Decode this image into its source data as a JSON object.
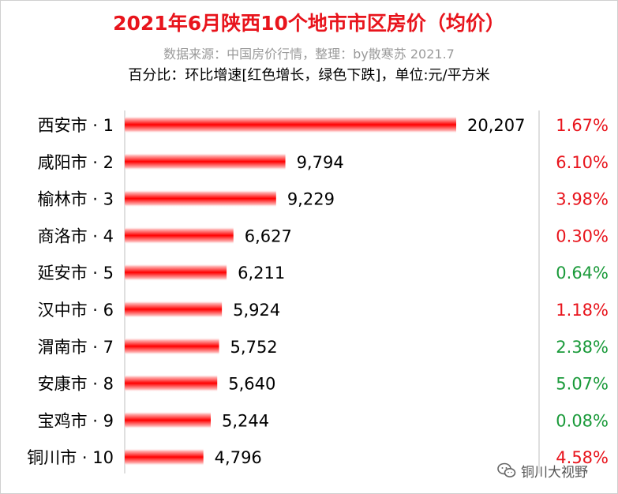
{
  "chart_data": {
    "type": "bar",
    "orientation": "horizontal",
    "title": "2021年6月陕西10个地市市区房价（均价）",
    "subtitle": "数据来源：中国房价行情，整理：by散寒苏  2021.7",
    "note": "百分比：环比增速[红色增长，绿色下跌]，单位:元/平方米",
    "categories": [
      "西安市 · 1",
      "咸阳市 · 2",
      "榆林市 · 3",
      "商洛市 · 4",
      "延安市 · 5",
      "汉中市 · 6",
      "渭南市 · 7",
      "安康市 · 8",
      "宝鸡市 · 9",
      "铜川市 · 10"
    ],
    "value_labels": [
      "20,207",
      "9,794",
      "9,229",
      "6,627",
      "6,211",
      "5,924",
      "5,752",
      "5,640",
      "5,244",
      "4,796"
    ],
    "values": [
      20207,
      9794,
      9229,
      6627,
      6211,
      5924,
      5752,
      5640,
      5244,
      4796
    ],
    "pct_labels": [
      "1.67%",
      "6.10%",
      "3.98%",
      "0.30%",
      "0.64%",
      "1.18%",
      "2.38%",
      "5.07%",
      "0.08%",
      "4.58%"
    ],
    "pct_direction": [
      "up",
      "up",
      "up",
      "up",
      "down",
      "up",
      "down",
      "down",
      "down",
      "up"
    ],
    "xlim": [
      0,
      20207
    ],
    "colors": {
      "bar": "#ff0000",
      "up": "#e8141c",
      "down": "#1a9a3a",
      "title": "#e8141c"
    }
  },
  "watermark": {
    "text": "铜川大视野",
    "icon": "wechat-icon"
  }
}
